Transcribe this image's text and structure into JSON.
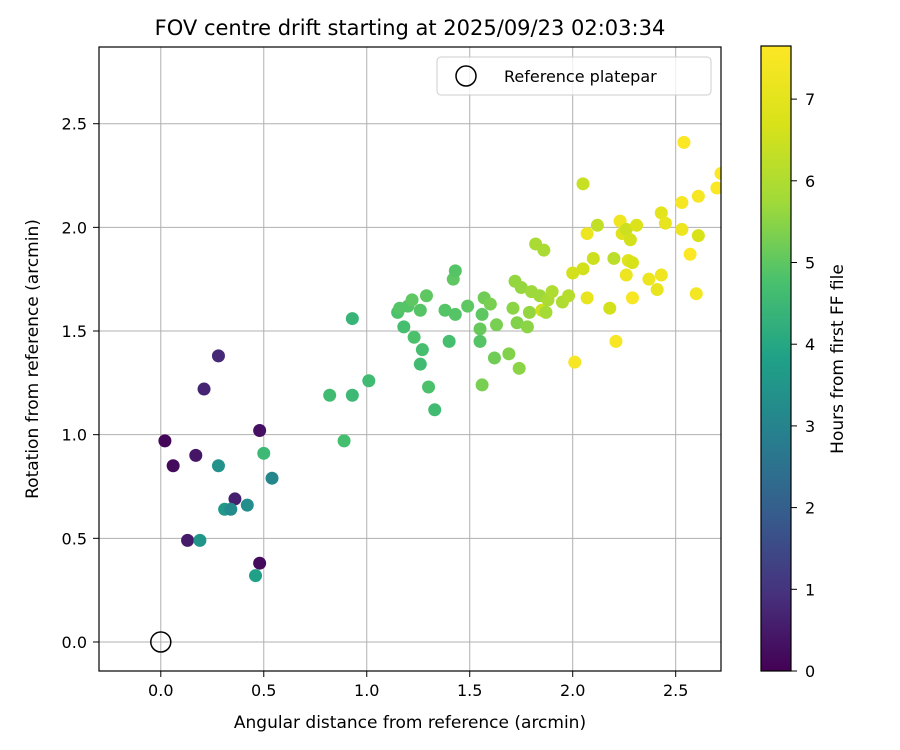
{
  "chart_data": {
    "type": "scatter",
    "title": "FOV centre drift starting at 2025/09/23 02:03:34",
    "xlabel": "Angular distance from reference (arcmin)",
    "ylabel": "Rotation from reference (arcmin)",
    "xlim": [
      -0.3,
      2.72
    ],
    "ylim": [
      -0.14,
      2.87
    ],
    "grid": true,
    "x_ticks": [
      0.0,
      0.5,
      1.0,
      1.5,
      2.0,
      2.5
    ],
    "x_tick_labels": [
      "0.0",
      "0.5",
      "1.0",
      "1.5",
      "2.0",
      "2.5"
    ],
    "y_ticks": [
      0.0,
      0.5,
      1.0,
      1.5,
      2.0,
      2.5
    ],
    "y_tick_labels": [
      "0.0",
      "0.5",
      "1.0",
      "1.5",
      "2.0",
      "2.5"
    ],
    "legend": {
      "position": "top-right",
      "entries": [
        {
          "label": "Reference platepar",
          "marker": "open-circle"
        }
      ]
    },
    "reference_point": {
      "x": 0.0,
      "y": 0.0,
      "label": "Reference platepar"
    },
    "colorbar": {
      "label": "Hours from first FF file",
      "colormap": "viridis",
      "range": [
        0,
        7.65
      ],
      "ticks": [
        0,
        1,
        2,
        3,
        4,
        5,
        6,
        7
      ],
      "tick_labels": [
        "0",
        "1",
        "2",
        "3",
        "4",
        "5",
        "6",
        "7"
      ]
    },
    "series": [
      {
        "name": "FOV centre drift",
        "points": [
          {
            "x": 0.02,
            "y": 0.97,
            "c": 0.1
          },
          {
            "x": 0.06,
            "y": 0.85,
            "c": 0.2
          },
          {
            "x": 0.13,
            "y": 0.49,
            "c": 0.5
          },
          {
            "x": 0.17,
            "y": 0.9,
            "c": 0.4
          },
          {
            "x": 0.21,
            "y": 1.22,
            "c": 0.7
          },
          {
            "x": 0.28,
            "y": 1.38,
            "c": 0.8
          },
          {
            "x": 0.36,
            "y": 0.69,
            "c": 0.6
          },
          {
            "x": 0.48,
            "y": 1.02,
            "c": 0.3
          },
          {
            "x": 0.48,
            "y": 0.38,
            "c": 0.2
          },
          {
            "x": 0.19,
            "y": 0.49,
            "c": 3.5
          },
          {
            "x": 0.28,
            "y": 0.85,
            "c": 3.4
          },
          {
            "x": 0.31,
            "y": 0.64,
            "c": 3.6
          },
          {
            "x": 0.34,
            "y": 0.64,
            "c": 3.2
          },
          {
            "x": 0.42,
            "y": 0.66,
            "c": 3.3
          },
          {
            "x": 0.46,
            "y": 0.32,
            "c": 3.8
          },
          {
            "x": 0.5,
            "y": 0.91,
            "c": 4.5
          },
          {
            "x": 0.54,
            "y": 0.79,
            "c": 3.1
          },
          {
            "x": 0.82,
            "y": 1.19,
            "c": 4.6
          },
          {
            "x": 0.89,
            "y": 0.97,
            "c": 4.7
          },
          {
            "x": 0.93,
            "y": 1.19,
            "c": 4.5
          },
          {
            "x": 0.93,
            "y": 1.56,
            "c": 4.4
          },
          {
            "x": 1.01,
            "y": 1.26,
            "c": 4.6
          },
          {
            "x": 1.15,
            "y": 1.59,
            "c": 4.8
          },
          {
            "x": 1.16,
            "y": 1.61,
            "c": 4.9
          },
          {
            "x": 1.18,
            "y": 1.52,
            "c": 4.7
          },
          {
            "x": 1.2,
            "y": 1.62,
            "c": 4.9
          },
          {
            "x": 1.22,
            "y": 1.65,
            "c": 5.0
          },
          {
            "x": 1.23,
            "y": 1.47,
            "c": 4.8
          },
          {
            "x": 1.26,
            "y": 1.34,
            "c": 4.6
          },
          {
            "x": 1.27,
            "y": 1.41,
            "c": 4.7
          },
          {
            "x": 1.26,
            "y": 1.6,
            "c": 4.9
          },
          {
            "x": 1.29,
            "y": 1.67,
            "c": 5.0
          },
          {
            "x": 1.3,
            "y": 1.23,
            "c": 4.8
          },
          {
            "x": 1.33,
            "y": 1.12,
            "c": 4.6
          },
          {
            "x": 1.38,
            "y": 1.6,
            "c": 4.9
          },
          {
            "x": 1.4,
            "y": 1.45,
            "c": 4.7
          },
          {
            "x": 1.42,
            "y": 1.75,
            "c": 5.0
          },
          {
            "x": 1.43,
            "y": 1.79,
            "c": 4.9
          },
          {
            "x": 1.43,
            "y": 1.58,
            "c": 4.9
          },
          {
            "x": 1.49,
            "y": 1.62,
            "c": 5.0
          },
          {
            "x": 1.55,
            "y": 1.51,
            "c": 5.1
          },
          {
            "x": 1.55,
            "y": 1.45,
            "c": 4.9
          },
          {
            "x": 1.56,
            "y": 1.24,
            "c": 5.3
          },
          {
            "x": 1.56,
            "y": 1.58,
            "c": 5.0
          },
          {
            "x": 1.57,
            "y": 1.66,
            "c": 5.2
          },
          {
            "x": 1.6,
            "y": 1.63,
            "c": 5.3
          },
          {
            "x": 1.62,
            "y": 1.37,
            "c": 5.2
          },
          {
            "x": 1.63,
            "y": 1.53,
            "c": 5.3
          },
          {
            "x": 1.69,
            "y": 1.39,
            "c": 5.4
          },
          {
            "x": 1.71,
            "y": 1.61,
            "c": 5.5
          },
          {
            "x": 1.72,
            "y": 1.74,
            "c": 5.6
          },
          {
            "x": 1.73,
            "y": 1.54,
            "c": 5.4
          },
          {
            "x": 1.74,
            "y": 1.32,
            "c": 5.5
          },
          {
            "x": 1.75,
            "y": 1.71,
            "c": 5.6
          },
          {
            "x": 1.78,
            "y": 1.52,
            "c": 5.5
          },
          {
            "x": 1.79,
            "y": 1.59,
            "c": 5.6
          },
          {
            "x": 1.8,
            "y": 1.69,
            "c": 5.7
          },
          {
            "x": 1.82,
            "y": 1.92,
            "c": 5.9
          },
          {
            "x": 1.84,
            "y": 1.67,
            "c": 5.7
          },
          {
            "x": 1.85,
            "y": 1.6,
            "c": 6.5
          },
          {
            "x": 1.86,
            "y": 1.89,
            "c": 5.9
          },
          {
            "x": 1.87,
            "y": 1.59,
            "c": 5.8
          },
          {
            "x": 1.88,
            "y": 1.65,
            "c": 5.9
          },
          {
            "x": 1.9,
            "y": 1.69,
            "c": 6.0
          },
          {
            "x": 1.95,
            "y": 1.64,
            "c": 6.0
          },
          {
            "x": 1.98,
            "y": 1.67,
            "c": 6.1
          },
          {
            "x": 2.0,
            "y": 1.78,
            "c": 6.6
          },
          {
            "x": 2.01,
            "y": 1.35,
            "c": 7.5
          },
          {
            "x": 2.05,
            "y": 2.21,
            "c": 6.4
          },
          {
            "x": 2.05,
            "y": 1.8,
            "c": 6.6
          },
          {
            "x": 2.07,
            "y": 1.97,
            "c": 7.2
          },
          {
            "x": 2.07,
            "y": 1.66,
            "c": 7.1
          },
          {
            "x": 2.1,
            "y": 1.85,
            "c": 6.5
          },
          {
            "x": 2.12,
            "y": 2.01,
            "c": 6.3
          },
          {
            "x": 2.18,
            "y": 1.61,
            "c": 6.6
          },
          {
            "x": 2.2,
            "y": 1.85,
            "c": 6.2
          },
          {
            "x": 2.21,
            "y": 1.45,
            "c": 7.5
          },
          {
            "x": 2.23,
            "y": 2.03,
            "c": 7.3
          },
          {
            "x": 2.24,
            "y": 1.97,
            "c": 6.9
          },
          {
            "x": 2.26,
            "y": 1.99,
            "c": 6.5
          },
          {
            "x": 2.26,
            "y": 1.77,
            "c": 7.2
          },
          {
            "x": 2.27,
            "y": 1.84,
            "c": 6.9
          },
          {
            "x": 2.28,
            "y": 1.94,
            "c": 6.6
          },
          {
            "x": 2.29,
            "y": 1.66,
            "c": 7.5
          },
          {
            "x": 2.29,
            "y": 1.83,
            "c": 6.7
          },
          {
            "x": 2.31,
            "y": 2.01,
            "c": 6.8
          },
          {
            "x": 2.37,
            "y": 1.75,
            "c": 7.2
          },
          {
            "x": 2.41,
            "y": 1.7,
            "c": 7.1
          },
          {
            "x": 2.43,
            "y": 1.77,
            "c": 7.3
          },
          {
            "x": 2.43,
            "y": 2.07,
            "c": 7.0
          },
          {
            "x": 2.45,
            "y": 2.02,
            "c": 7.1
          },
          {
            "x": 2.53,
            "y": 2.12,
            "c": 7.5
          },
          {
            "x": 2.53,
            "y": 1.99,
            "c": 7.2
          },
          {
            "x": 2.54,
            "y": 2.41,
            "c": 7.6
          },
          {
            "x": 2.57,
            "y": 1.87,
            "c": 7.6
          },
          {
            "x": 2.6,
            "y": 1.68,
            "c": 7.4
          },
          {
            "x": 2.61,
            "y": 2.15,
            "c": 7.5
          },
          {
            "x": 2.61,
            "y": 1.96,
            "c": 6.7
          },
          {
            "x": 2.7,
            "y": 2.19,
            "c": 7.6
          },
          {
            "x": 2.72,
            "y": 2.26,
            "c": 7.6
          }
        ]
      }
    ]
  }
}
